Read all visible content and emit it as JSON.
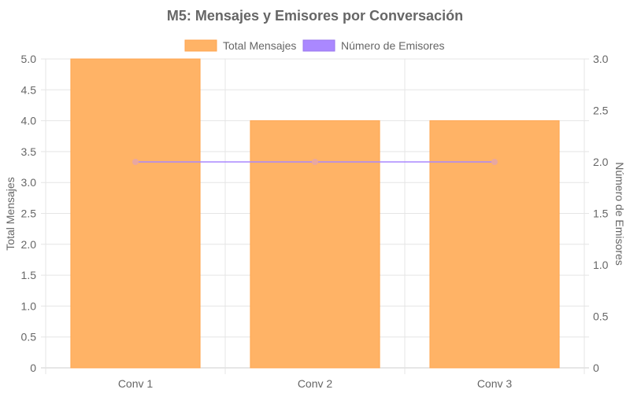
{
  "chart_data": {
    "type": "bar",
    "title": "M5: Mensajes y Emisores por Conversación",
    "categories": [
      "Conv 1",
      "Conv 2",
      "Conv 3"
    ],
    "series": [
      {
        "name": "Total Mensajes",
        "type": "bar",
        "axis": "left",
        "values": [
          5,
          4,
          4
        ],
        "color": "#FFB366",
        "border": "#FFA650"
      },
      {
        "name": "Número de Emisores",
        "type": "line",
        "axis": "right",
        "values": [
          2,
          2,
          2
        ],
        "color": "#AA88FF",
        "point_color": "#E8A7A0"
      }
    ],
    "ylabel": "Total Mensajes",
    "y2label": "Número de Emisores",
    "ylim": [
      0,
      5
    ],
    "y2lim": [
      0,
      3
    ],
    "yticks": [
      "0",
      "0.5",
      "1.0",
      "1.5",
      "2.0",
      "2.5",
      "3.0",
      "3.5",
      "4.0",
      "4.5",
      "5.0"
    ],
    "y2ticks": [
      "0",
      "0.5",
      "1.0",
      "1.5",
      "2.0",
      "2.5",
      "3.0"
    ],
    "grid": true,
    "legend": "top-center"
  }
}
